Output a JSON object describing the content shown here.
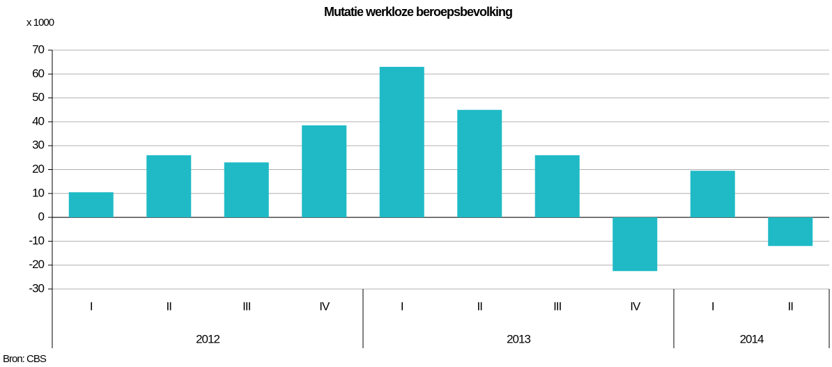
{
  "chart_data": {
    "type": "bar",
    "title": "Mutatie werkloze beroepsbevolking",
    "unit_label": "x 1000",
    "source": "Bron: CBS",
    "color": "#1fbac6",
    "grid": true,
    "ylim": [
      -30,
      70
    ],
    "yticks": [
      -30,
      -20,
      -10,
      0,
      10,
      20,
      30,
      40,
      50,
      60,
      70
    ],
    "groups": [
      {
        "name": "2012",
        "categories": [
          "I",
          "II",
          "III",
          "IV"
        ],
        "values": [
          10.5,
          26,
          23,
          38.5
        ]
      },
      {
        "name": "2013",
        "categories": [
          "I",
          "II",
          "III",
          "IV"
        ],
        "values": [
          63,
          45,
          26,
          -22.5
        ]
      },
      {
        "name": "2014",
        "categories": [
          "I",
          "II"
        ],
        "values": [
          19.5,
          -12
        ]
      }
    ]
  }
}
